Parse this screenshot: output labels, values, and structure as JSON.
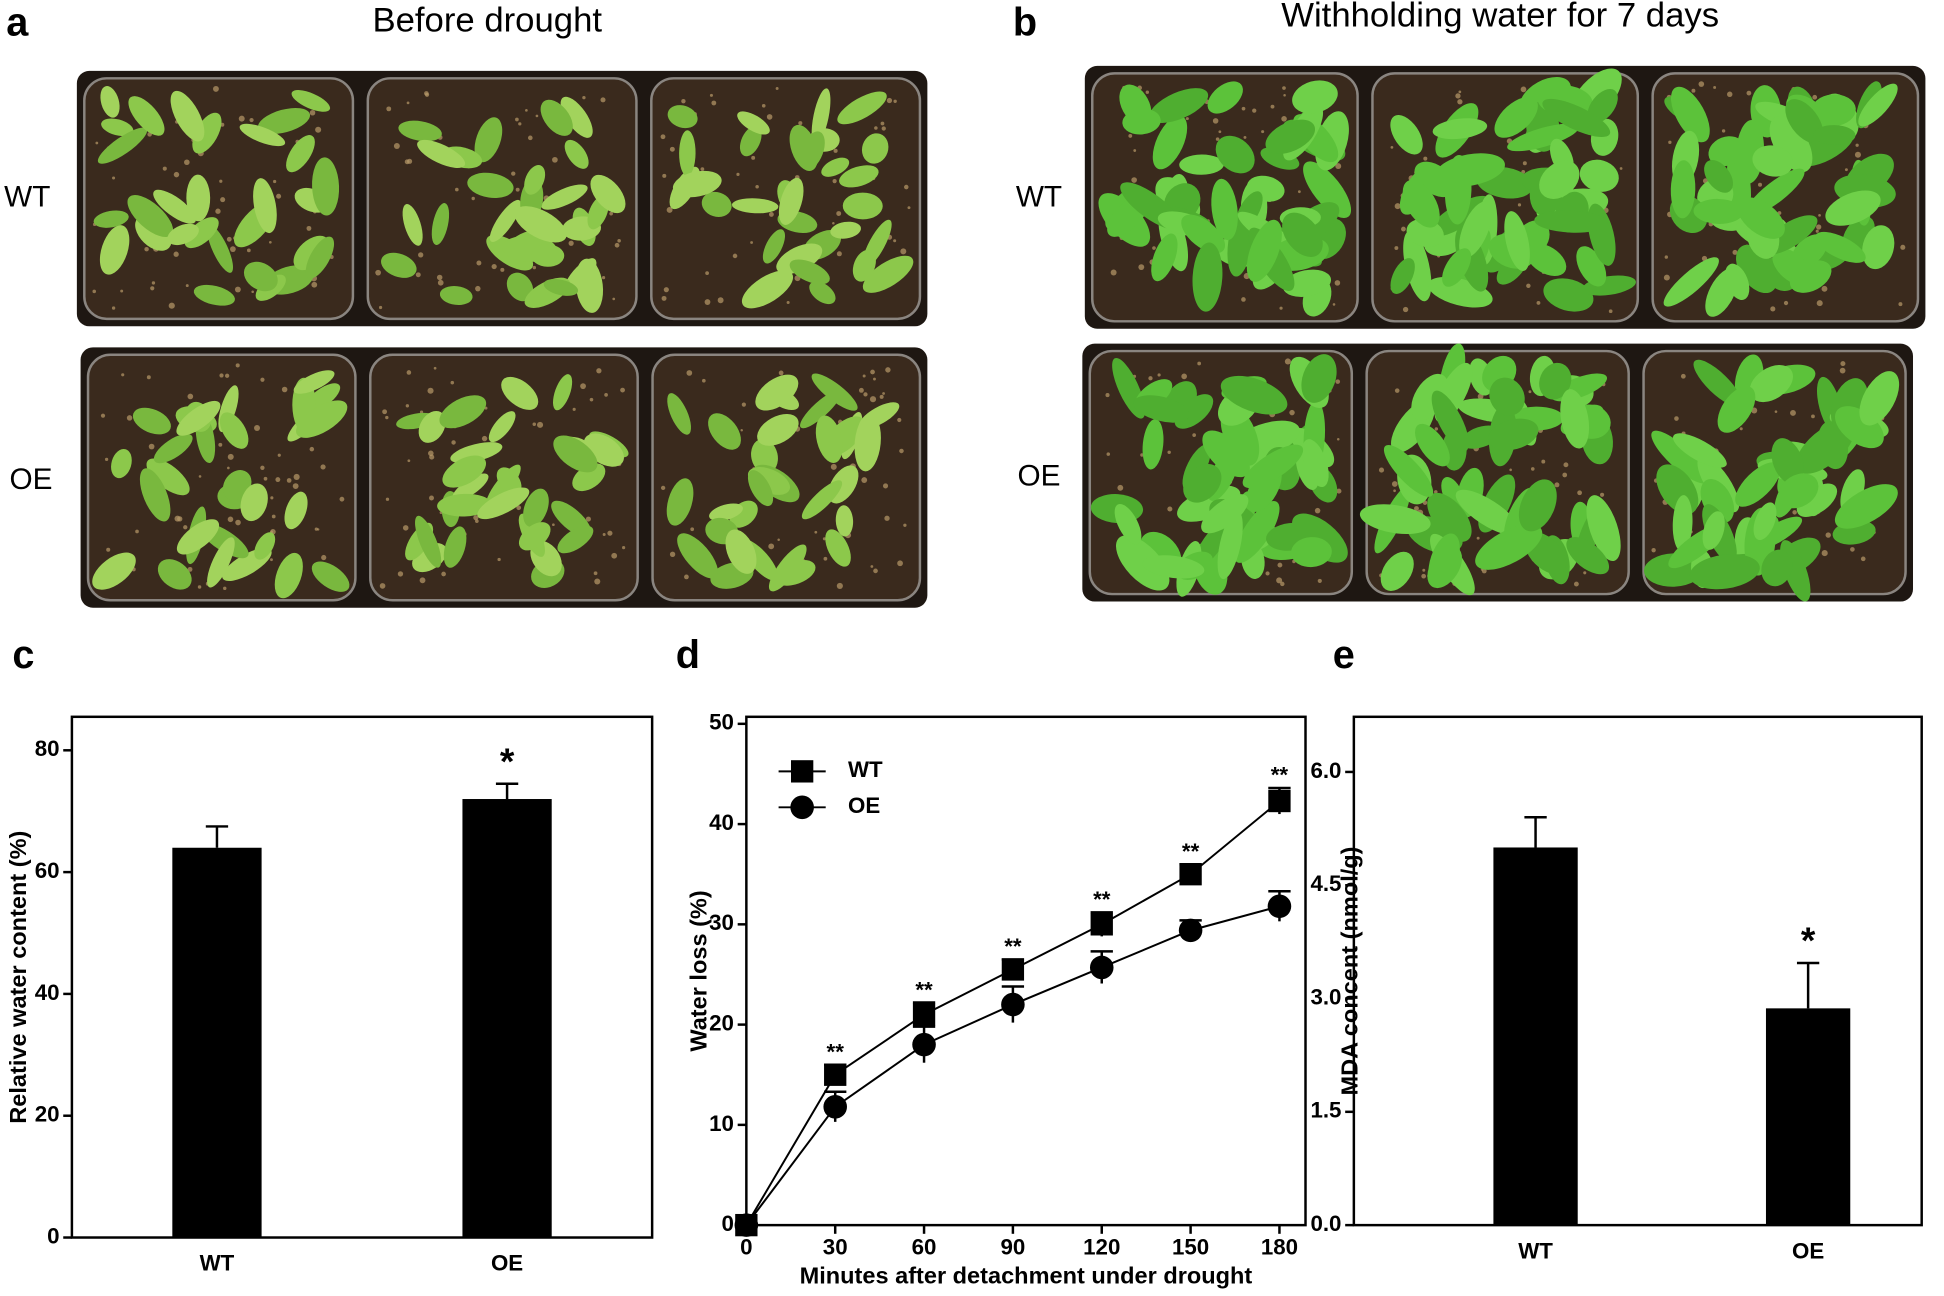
{
  "photos": [
    {
      "panel": "a",
      "title": "Before drought",
      "rows": [
        "WT",
        "OE"
      ]
    },
    {
      "panel": "b",
      "title": "Withholding water for 7 days",
      "rows": [
        "WT",
        "OE"
      ]
    }
  ],
  "chart_data": [
    {
      "type": "bar",
      "panel": "c",
      "ylabel": "Relative water content (%)",
      "categories": [
        "WT",
        "OE"
      ],
      "values": [
        64,
        72
      ],
      "errors": [
        3.5,
        2.5
      ],
      "significance": [
        null,
        "*"
      ],
      "color": "#000000",
      "ylim": [
        0,
        85.5
      ],
      "yticks": [
        0,
        20,
        40,
        60,
        80
      ]
    },
    {
      "type": "line",
      "panel": "d",
      "ylabel": "Water loss (%)",
      "xlabel": "Minutes after detachment under drought",
      "x": [
        0,
        30,
        60,
        90,
        120,
        150,
        180
      ],
      "series": [
        {
          "name": "WT",
          "color": "#000000",
          "marker": "square",
          "values": [
            0,
            15,
            21,
            25.5,
            30,
            35,
            42.3
          ],
          "errors": [
            0,
            1,
            1.2,
            1,
            1.2,
            1,
            1.3
          ]
        },
        {
          "name": "OE",
          "color": "#000000",
          "marker": "circle",
          "values": [
            0,
            11.8,
            18,
            22,
            25.7,
            29.4,
            31.8
          ],
          "errors": [
            0,
            1.5,
            1.8,
            1.8,
            1.6,
            1,
            1.5
          ]
        }
      ],
      "significance": [
        null,
        "**",
        "**",
        "**",
        "**",
        "**",
        "**"
      ],
      "xlim": [
        0,
        188.8
      ],
      "xticks": [
        0,
        30,
        60,
        90,
        120,
        150,
        180
      ],
      "ylim": [
        0,
        50.7
      ],
      "yticks": [
        0,
        10,
        20,
        30,
        40,
        50
      ],
      "legend": "upper left"
    },
    {
      "type": "bar",
      "panel": "e",
      "ylabel": "MDA concent (nmol/g)",
      "categories": [
        "WT",
        "OE"
      ],
      "values": [
        5.0,
        2.87
      ],
      "errors": [
        0.4,
        0.6
      ],
      "significance": [
        null,
        "*"
      ],
      "color": "#000000",
      "ylim": [
        0,
        6.73
      ],
      "yticks": [
        {
          "value": 0,
          "label": "0.0"
        },
        {
          "value": 1.5,
          "label": "1.5"
        },
        {
          "value": 3,
          "label": "3.0"
        },
        {
          "value": 4.5,
          "label": "4.5"
        },
        {
          "value": 6,
          "label": "6.0"
        }
      ]
    }
  ]
}
